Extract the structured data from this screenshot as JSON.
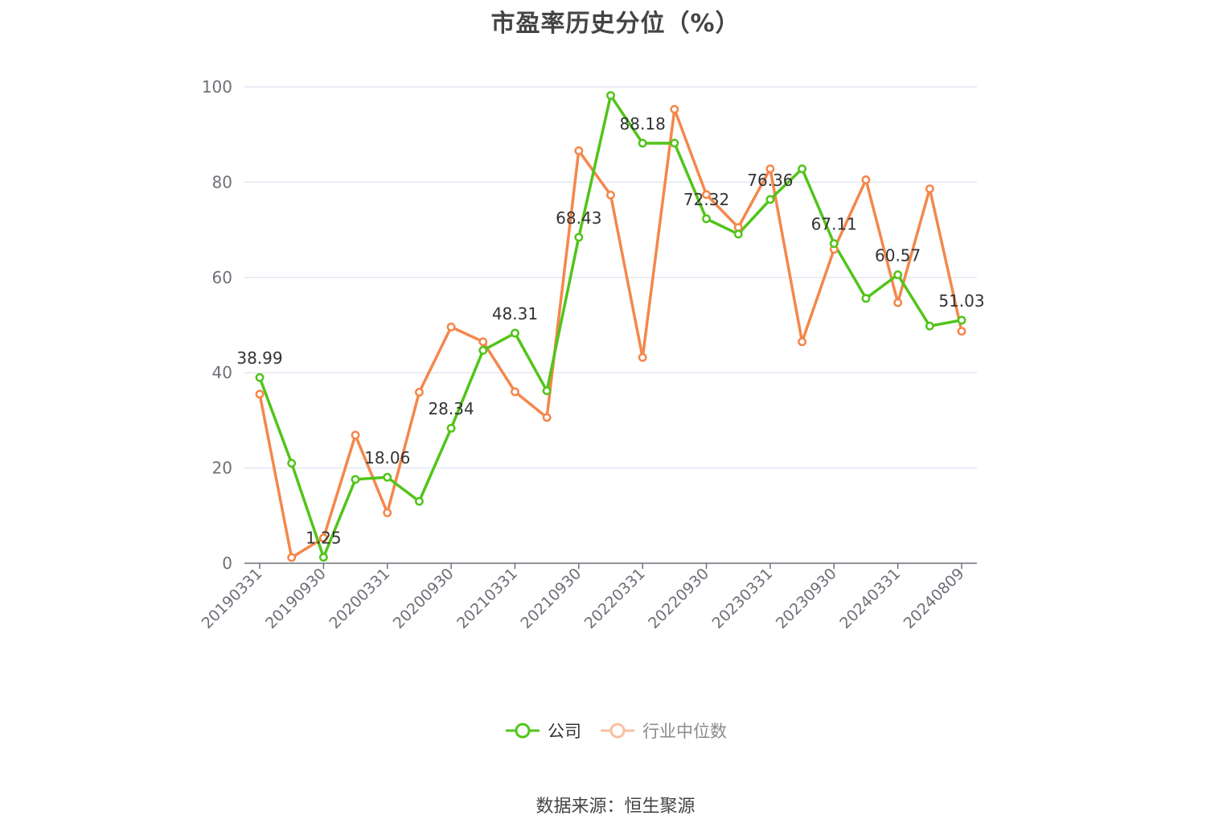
{
  "chart_data": {
    "type": "line",
    "title": "市盈率历史分位（%）",
    "x": [
      "20190331",
      "20190630",
      "20190930",
      "20191231",
      "20200331",
      "20200630",
      "20200930",
      "20201231",
      "20210331",
      "20210630",
      "20210930",
      "20211231",
      "20220331",
      "20220630",
      "20220930",
      "20221231",
      "20230331",
      "20230630",
      "20230930",
      "20231231",
      "20240331",
      "20240630",
      "20240809"
    ],
    "x_tick_labels": [
      "20190331",
      "20190930",
      "20200331",
      "20200930",
      "20210331",
      "20210930",
      "20220331",
      "20220930",
      "20230331",
      "20230930",
      "20240331",
      "20240809"
    ],
    "ylim": [
      0,
      100
    ],
    "y_ticks": [
      0,
      20,
      40,
      60,
      80,
      100
    ],
    "grid": true,
    "legend_position": "bottom",
    "series": [
      {
        "name": "公司",
        "color": "#52c41a",
        "values": [
          38.99,
          21.0,
          1.25,
          17.6,
          18.06,
          13.0,
          28.34,
          44.7,
          48.31,
          36.2,
          68.43,
          98.2,
          88.18,
          88.2,
          72.32,
          69.1,
          76.36,
          82.8,
          67.11,
          55.6,
          60.57,
          49.8,
          51.03
        ],
        "labels": [
          "38.99",
          "",
          "1.25",
          "",
          "18.06",
          "",
          "28.34",
          "",
          "48.31",
          "",
          "68.43",
          "",
          "88.18",
          "",
          "72.32",
          "",
          "76.36",
          "",
          "67.11",
          "",
          "60.57",
          "",
          "51.03"
        ]
      },
      {
        "name": "行业中位数",
        "color": "#f4874b",
        "values": [
          35.5,
          1.2,
          5.3,
          26.9,
          10.6,
          35.9,
          49.6,
          46.5,
          36.0,
          30.6,
          86.6,
          77.3,
          43.2,
          95.3,
          77.4,
          70.5,
          82.8,
          46.5,
          65.9,
          80.5,
          54.7,
          78.6,
          48.7
        ]
      }
    ]
  },
  "legend": {
    "company": "公司",
    "industry": "行业中位数"
  },
  "source": "数据来源：恒生聚源",
  "colors": {
    "company": "#52c41a",
    "industry": "#f4874b",
    "industry_legend": "#f8bfa0",
    "axis": "#6e7079",
    "grid": "#e0e6f1",
    "label": "#333333"
  }
}
